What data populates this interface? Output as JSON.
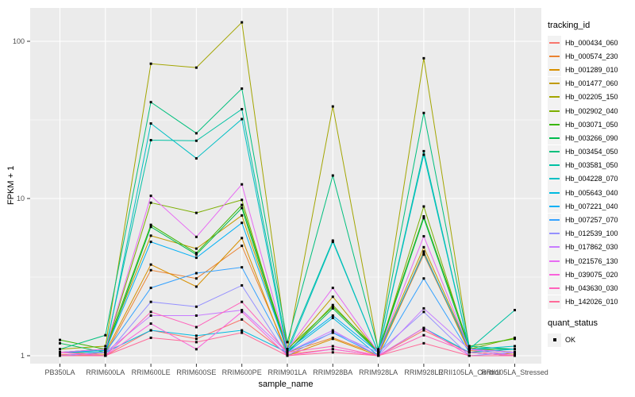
{
  "chart_data": {
    "type": "line",
    "title": "",
    "xlabel": "sample_name",
    "ylabel": "FPKM + 1",
    "y_scale": "log10",
    "y_ticks": [
      1,
      10,
      100
    ],
    "y_tick_labels": [
      "1",
      "10",
      "100"
    ],
    "y_minor_gridlines": [
      3.162,
      31.623
    ],
    "ylim": [
      0.9,
      160
    ],
    "grid": true,
    "legend_position": "right",
    "legend_title": "tracking_id",
    "point_marker": "black-square",
    "categories": [
      "PB350LA",
      "RRIM600LA",
      "RRIM600LE",
      "RRIM600SE",
      "RRIM600PE",
      "RRIM901LA",
      "RRIM928BA",
      "RRIM928LA",
      "RRIM928LE",
      "RRII105LA_Control",
      "RRII105LA_Stressed"
    ],
    "series": [
      {
        "name": "Hb_000434_060",
        "color": "#F8766D",
        "values": [
          1.02,
          1.0,
          1.45,
          1.28,
          1.7,
          1.02,
          1.1,
          1.0,
          1.45,
          1.05,
          1.0
        ]
      },
      {
        "name": "Hb_000574_230",
        "color": "#EA8331",
        "values": [
          1.05,
          1.02,
          3.5,
          3.1,
          5.0,
          1.05,
          1.3,
          1.02,
          4.4,
          1.08,
          1.02
        ]
      },
      {
        "name": "Hb_001289_010",
        "color": "#D89000",
        "values": [
          1.0,
          1.05,
          3.8,
          2.75,
          5.6,
          1.0,
          1.28,
          1.0,
          4.6,
          1.05,
          1.0
        ]
      },
      {
        "name": "Hb_001477_060",
        "color": "#C09B00",
        "values": [
          1.05,
          1.1,
          5.8,
          4.8,
          7.8,
          1.08,
          2.37,
          1.05,
          4.9,
          1.1,
          1.05
        ]
      },
      {
        "name": "Hb_002205_150",
        "color": "#A3A500",
        "values": [
          1.1,
          1.15,
          72,
          68,
          132,
          1.1,
          38.5,
          1.08,
          78,
          1.12,
          1.05
        ]
      },
      {
        "name": "Hb_002902_040",
        "color": "#7CAE00",
        "values": [
          1.05,
          1.08,
          9.4,
          8.1,
          9.8,
          1.05,
          2.1,
          1.05,
          8.9,
          1.1,
          1.3
        ]
      },
      {
        "name": "Hb_003071_050",
        "color": "#39B600",
        "values": [
          1.26,
          1.1,
          6.8,
          4.5,
          9.1,
          1.1,
          2.05,
          1.08,
          7.7,
          1.15,
          1.28
        ]
      },
      {
        "name": "Hb_003266_090",
        "color": "#00BB4E",
        "values": [
          1.2,
          1.05,
          6.6,
          4.4,
          8.7,
          1.05,
          2.0,
          1.05,
          7.5,
          1.1,
          1.1
        ]
      },
      {
        "name": "Hb_003454_050",
        "color": "#00BF7D",
        "values": [
          1.1,
          1.35,
          41,
          26,
          50,
          1.22,
          14,
          1.1,
          35,
          1.15,
          1.1
        ]
      },
      {
        "name": "Hb_003581_050",
        "color": "#00C1A3",
        "values": [
          1.05,
          1.1,
          23.5,
          23.3,
          37,
          1.1,
          5.4,
          1.05,
          20,
          1.1,
          1.95
        ]
      },
      {
        "name": "Hb_004228_070",
        "color": "#00BFC4",
        "values": [
          1.05,
          1.05,
          30,
          18,
          32,
          1.05,
          5.3,
          1.05,
          19,
          1.1,
          1.15
        ]
      },
      {
        "name": "Hb_005643_040",
        "color": "#00BAE0",
        "values": [
          1.0,
          1.05,
          1.45,
          1.34,
          1.45,
          1.05,
          1.74,
          1.0,
          1.5,
          1.05,
          1.1
        ]
      },
      {
        "name": "Hb_007221_040",
        "color": "#00B0F6",
        "values": [
          1.05,
          1.08,
          5.3,
          4.2,
          7.0,
          1.08,
          1.8,
          1.05,
          4.5,
          1.1,
          1.05
        ]
      },
      {
        "name": "Hb_007257_070",
        "color": "#35A2FF",
        "values": [
          1.0,
          1.05,
          2.7,
          3.35,
          3.65,
          1.05,
          1.4,
          1.0,
          3.1,
          1.05,
          1.0
        ]
      },
      {
        "name": "Hb_012539_100",
        "color": "#9590FF",
        "values": [
          1.05,
          1.0,
          2.2,
          2.05,
          2.8,
          1.0,
          1.41,
          1.05,
          1.9,
          1.0,
          1.05
        ]
      },
      {
        "name": "Hb_017862_030",
        "color": "#C77CFF",
        "values": [
          1.0,
          1.05,
          1.8,
          1.8,
          1.95,
          1.05,
          1.45,
          1.0,
          2.0,
          1.1,
          1.0
        ]
      },
      {
        "name": "Hb_021576_130",
        "color": "#E76BF3",
        "values": [
          1.05,
          1.1,
          10.4,
          5.7,
          12.3,
          1.1,
          2.7,
          1.05,
          5.75,
          1.1,
          1.05
        ]
      },
      {
        "name": "Hb_039075_020",
        "color": "#FA62DB",
        "values": [
          1.0,
          1.0,
          1.6,
          1.1,
          1.9,
          1.0,
          1.1,
          1.0,
          1.5,
          1.0,
          1.0
        ]
      },
      {
        "name": "Hb_043630_030",
        "color": "#FF62BC",
        "values": [
          1.05,
          1.0,
          1.9,
          1.52,
          2.2,
          1.05,
          1.15,
          1.0,
          1.35,
          1.05,
          1.0
        ]
      },
      {
        "name": "Hb_142026_010",
        "color": "#FF6A98",
        "values": [
          1.0,
          1.0,
          1.3,
          1.22,
          1.4,
          1.0,
          1.05,
          1.0,
          1.2,
          1.0,
          1.0
        ]
      }
    ],
    "quant_status": {
      "title": "quant_status",
      "items": [
        "OK"
      ]
    },
    "colors": {
      "panel_bg": "#EBEBEB",
      "gridline_major": "#FFFFFF",
      "gridline_minor": "#F7F7F7",
      "tick_label": "#4D4D4D",
      "tick_mark": "#333333",
      "point": "#000000",
      "legend_key_bg": "#F2F2F2"
    }
  }
}
